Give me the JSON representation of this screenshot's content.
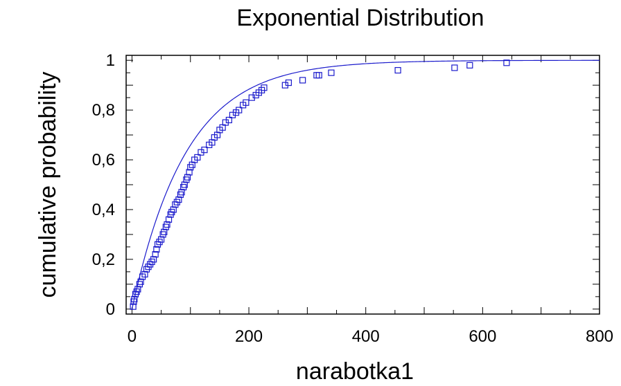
{
  "chart_data": {
    "type": "scatter",
    "title": "Exponential Distribution",
    "xlabel": "narabotka1",
    "ylabel": "cumulative probability",
    "xlim": [
      -10,
      800
    ],
    "ylim": [
      -0.02,
      1.02
    ],
    "xticks": [
      "0",
      "200",
      "400",
      "600",
      "800"
    ],
    "yticks": [
      "0",
      "0,2",
      "0,4",
      "0,6",
      "0,8",
      "1"
    ],
    "grid": false,
    "colors": {
      "series": "#1a1acc",
      "axes": "#000000"
    },
    "series": [
      {
        "type": "scatter",
        "marker": "square",
        "points": [
          [
            2,
            0.01
          ],
          [
            3,
            0.03
          ],
          [
            4,
            0.04
          ],
          [
            6,
            0.06
          ],
          [
            8,
            0.07
          ],
          [
            10,
            0.08
          ],
          [
            13,
            0.1
          ],
          [
            15,
            0.11
          ],
          [
            18,
            0.13
          ],
          [
            22,
            0.14
          ],
          [
            25,
            0.16
          ],
          [
            28,
            0.17
          ],
          [
            31,
            0.18
          ],
          [
            34,
            0.19
          ],
          [
            37,
            0.2
          ],
          [
            40,
            0.22
          ],
          [
            42,
            0.24
          ],
          [
            44,
            0.26
          ],
          [
            47,
            0.27
          ],
          [
            50,
            0.28
          ],
          [
            53,
            0.3
          ],
          [
            55,
            0.31
          ],
          [
            58,
            0.33
          ],
          [
            60,
            0.34
          ],
          [
            63,
            0.36
          ],
          [
            66,
            0.38
          ],
          [
            68,
            0.39
          ],
          [
            71,
            0.4
          ],
          [
            74,
            0.42
          ],
          [
            77,
            0.43
          ],
          [
            80,
            0.44
          ],
          [
            83,
            0.46
          ],
          [
            85,
            0.47
          ],
          [
            88,
            0.49
          ],
          [
            90,
            0.5
          ],
          [
            93,
            0.52
          ],
          [
            95,
            0.53
          ],
          [
            98,
            0.55
          ],
          [
            100,
            0.57
          ],
          [
            103,
            0.58
          ],
          [
            107,
            0.6
          ],
          [
            112,
            0.61
          ],
          [
            118,
            0.63
          ],
          [
            124,
            0.64
          ],
          [
            132,
            0.66
          ],
          [
            137,
            0.67
          ],
          [
            141,
            0.69
          ],
          [
            146,
            0.7
          ],
          [
            150,
            0.72
          ],
          [
            155,
            0.73
          ],
          [
            160,
            0.75
          ],
          [
            166,
            0.76
          ],
          [
            172,
            0.78
          ],
          [
            178,
            0.79
          ],
          [
            183,
            0.8
          ],
          [
            190,
            0.82
          ],
          [
            195,
            0.83
          ],
          [
            205,
            0.85
          ],
          [
            212,
            0.86
          ],
          [
            217,
            0.87
          ],
          [
            222,
            0.88
          ],
          [
            226,
            0.89
          ],
          [
            262,
            0.9
          ],
          [
            268,
            0.91
          ],
          [
            292,
            0.92
          ],
          [
            316,
            0.94
          ],
          [
            320,
            0.94
          ],
          [
            341,
            0.95
          ],
          [
            455,
            0.96
          ],
          [
            552,
            0.97
          ],
          [
            578,
            0.98
          ],
          [
            641,
            0.99
          ]
        ]
      },
      {
        "type": "line",
        "function": "exponential_cdf",
        "mean": 93
      }
    ]
  }
}
